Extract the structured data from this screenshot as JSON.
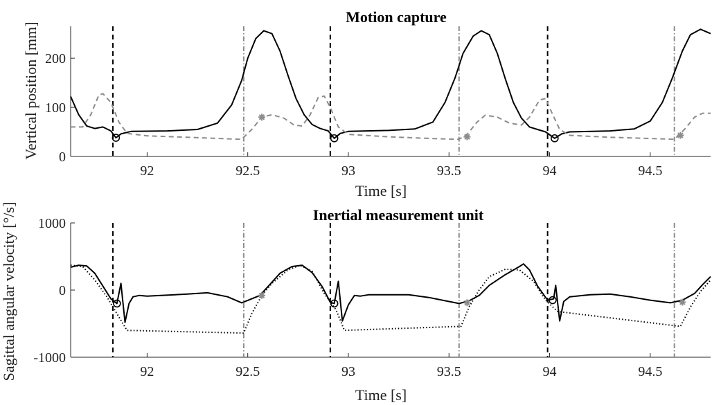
{
  "chart_data": [
    {
      "type": "line",
      "title": "Motion capture",
      "xlabel": "Time [s]",
      "ylabel": "Vertical position [mm]",
      "xlim": [
        91.62,
        94.8
      ],
      "ylim": [
        0,
        265
      ],
      "xticks": [
        92,
        92.5,
        93,
        93.5,
        94,
        94.5
      ],
      "xtick_labels": [
        "92",
        "92.5",
        "93",
        "93.5",
        "94",
        "94.5"
      ],
      "yticks": [
        0,
        100,
        200
      ],
      "ytick_labels": [
        "0",
        "100",
        "200"
      ],
      "grid": false,
      "series": [
        {
          "style": "solid",
          "color": "#000000",
          "points": [
            [
              91.62,
              122
            ],
            [
              91.66,
              85
            ],
            [
              91.7,
              62
            ],
            [
              91.74,
              57
            ],
            [
              91.78,
              60
            ],
            [
              91.82,
              52
            ],
            [
              91.845,
              38
            ],
            [
              91.87,
              46
            ],
            [
              91.92,
              51
            ],
            [
              92.1,
              52
            ],
            [
              92.25,
              55
            ],
            [
              92.35,
              68
            ],
            [
              92.42,
              105
            ],
            [
              92.47,
              155
            ],
            [
              92.5,
              200
            ],
            [
              92.54,
              240
            ],
            [
              92.58,
              256
            ],
            [
              92.62,
              250
            ],
            [
              92.66,
              215
            ],
            [
              92.7,
              165
            ],
            [
              92.74,
              118
            ],
            [
              92.78,
              85
            ],
            [
              92.82,
              65
            ],
            [
              92.86,
              57
            ],
            [
              92.9,
              52
            ],
            [
              92.93,
              37
            ],
            [
              92.96,
              47
            ],
            [
              93.0,
              51
            ],
            [
              93.2,
              53
            ],
            [
              93.33,
              56
            ],
            [
              93.42,
              70
            ],
            [
              93.48,
              110
            ],
            [
              93.53,
              160
            ],
            [
              93.57,
              210
            ],
            [
              93.62,
              245
            ],
            [
              93.66,
              256
            ],
            [
              93.7,
              248
            ],
            [
              93.74,
              210
            ],
            [
              93.78,
              158
            ],
            [
              93.82,
              110
            ],
            [
              93.86,
              78
            ],
            [
              93.9,
              60
            ],
            [
              93.94,
              55
            ],
            [
              93.98,
              50
            ],
            [
              94.025,
              37
            ],
            [
              94.06,
              46
            ],
            [
              94.1,
              50
            ],
            [
              94.3,
              52
            ],
            [
              94.42,
              56
            ],
            [
              94.5,
              72
            ],
            [
              94.56,
              110
            ],
            [
              94.61,
              160
            ],
            [
              94.66,
              215
            ],
            [
              94.7,
              248
            ],
            [
              94.75,
              259
            ],
            [
              94.8,
              250
            ]
          ]
        },
        {
          "style": "dashed",
          "color": "#8c8c8c",
          "points": [
            [
              91.62,
              60
            ],
            [
              91.68,
              60
            ],
            [
              91.72,
              85
            ],
            [
              91.76,
              125
            ],
            [
              91.78,
              128
            ],
            [
              91.82,
              110
            ],
            [
              91.86,
              70
            ],
            [
              91.9,
              47
            ],
            [
              92.0,
              42
            ],
            [
              92.2,
              39
            ],
            [
              92.4,
              36
            ],
            [
              92.47,
              35
            ],
            [
              92.52,
              55
            ],
            [
              92.57,
              80
            ],
            [
              92.62,
              85
            ],
            [
              92.68,
              78
            ],
            [
              92.73,
              64
            ],
            [
              92.77,
              62
            ],
            [
              92.81,
              85
            ],
            [
              92.85,
              120
            ],
            [
              92.88,
              123
            ],
            [
              92.91,
              100
            ],
            [
              92.95,
              60
            ],
            [
              93.0,
              45
            ],
            [
              93.2,
              40
            ],
            [
              93.45,
              36
            ],
            [
              93.55,
              35
            ],
            [
              93.59,
              45
            ],
            [
              93.64,
              70
            ],
            [
              93.68,
              84
            ],
            [
              93.74,
              80
            ],
            [
              93.8,
              68
            ],
            [
              93.86,
              64
            ],
            [
              93.9,
              80
            ],
            [
              93.95,
              115
            ],
            [
              93.98,
              118
            ],
            [
              94.01,
              90
            ],
            [
              94.05,
              55
            ],
            [
              94.1,
              43
            ],
            [
              94.3,
              39
            ],
            [
              94.55,
              36
            ],
            [
              94.62,
              35
            ],
            [
              94.67,
              55
            ],
            [
              94.72,
              80
            ],
            [
              94.76,
              88
            ],
            [
              94.8,
              88
            ]
          ]
        }
      ],
      "markers": [
        {
          "shape": "circle",
          "color": "#000000",
          "points": [
            [
              91.845,
              38
            ],
            [
              92.93,
              37
            ],
            [
              94.025,
              37
            ]
          ]
        },
        {
          "shape": "asterisk",
          "color": "#8c8c8c",
          "points": [
            [
              92.57,
              80
            ],
            [
              93.59,
              40
            ],
            [
              94.65,
              43
            ]
          ]
        }
      ],
      "vlines": [
        {
          "style": "dashed",
          "color": "#000000",
          "x": [
            91.83,
            92.91,
            93.99
          ]
        },
        {
          "style": "dashdot",
          "color": "#8c8c8c",
          "x": [
            92.48,
            93.55,
            94.62
          ]
        }
      ]
    },
    {
      "type": "line",
      "title": "Inertial measurement unit",
      "xlabel": "Time [s]",
      "ylabel": "Sagittal angular velocity [°/s]",
      "xlim": [
        91.62,
        94.8
      ],
      "ylim": [
        -1000,
        1000
      ],
      "xticks": [
        92,
        92.5,
        93,
        93.5,
        94,
        94.5
      ],
      "xtick_labels": [
        "92",
        "92.5",
        "93",
        "93.5",
        "94",
        "94.5"
      ],
      "yticks": [
        -1000,
        0,
        1000
      ],
      "ytick_labels": [
        "-1000",
        "0",
        "1000"
      ],
      "grid": false,
      "series": [
        {
          "style": "solid",
          "color": "#000000",
          "points": [
            [
              91.62,
              340
            ],
            [
              91.66,
              370
            ],
            [
              91.7,
              360
            ],
            [
              91.74,
              250
            ],
            [
              91.78,
              60
            ],
            [
              91.82,
              -130
            ],
            [
              91.85,
              -200
            ],
            [
              91.87,
              100
            ],
            [
              91.89,
              -480
            ],
            [
              91.91,
              -200
            ],
            [
              91.93,
              -100
            ],
            [
              91.96,
              -80
            ],
            [
              92.0,
              -90
            ],
            [
              92.2,
              -60
            ],
            [
              92.3,
              -40
            ],
            [
              92.4,
              -100
            ],
            [
              92.47,
              -190
            ],
            [
              92.52,
              -130
            ],
            [
              92.56,
              -80
            ],
            [
              92.6,
              50
            ],
            [
              92.66,
              250
            ],
            [
              92.72,
              350
            ],
            [
              92.77,
              370
            ],
            [
              92.82,
              260
            ],
            [
              92.87,
              50
            ],
            [
              92.91,
              -180
            ],
            [
              92.93,
              -200
            ],
            [
              92.95,
              130
            ],
            [
              92.97,
              -460
            ],
            [
              93.0,
              -220
            ],
            [
              93.03,
              -80
            ],
            [
              93.06,
              -90
            ],
            [
              93.1,
              -70
            ],
            [
              93.3,
              -70
            ],
            [
              93.4,
              -110
            ],
            [
              93.5,
              -170
            ],
            [
              93.55,
              -200
            ],
            [
              93.6,
              -160
            ],
            [
              93.65,
              -80
            ],
            [
              93.7,
              70
            ],
            [
              93.78,
              230
            ],
            [
              93.85,
              350
            ],
            [
              93.87,
              390
            ],
            [
              93.9,
              300
            ],
            [
              93.94,
              60
            ],
            [
              93.99,
              -150
            ],
            [
              94.02,
              -130
            ],
            [
              94.03,
              70
            ],
            [
              94.05,
              -460
            ],
            [
              94.07,
              -170
            ],
            [
              94.1,
              -100
            ],
            [
              94.2,
              -70
            ],
            [
              94.3,
              -60
            ],
            [
              94.4,
              -100
            ],
            [
              94.5,
              -150
            ],
            [
              94.6,
              -190
            ],
            [
              94.66,
              -150
            ],
            [
              94.72,
              -50
            ],
            [
              94.76,
              80
            ],
            [
              94.8,
              200
            ]
          ]
        },
        {
          "style": "dotted",
          "color": "#000000",
          "points": [
            [
              91.62,
              370
            ],
            [
              91.68,
              350
            ],
            [
              91.74,
              150
            ],
            [
              91.8,
              -100
            ],
            [
              91.84,
              -300
            ],
            [
              91.88,
              -500
            ],
            [
              91.9,
              -600
            ],
            [
              92.48,
              -640
            ],
            [
              92.52,
              -350
            ],
            [
              92.57,
              -80
            ],
            [
              92.62,
              100
            ],
            [
              92.7,
              300
            ],
            [
              92.76,
              370
            ],
            [
              92.82,
              280
            ],
            [
              92.88,
              -50
            ],
            [
              92.94,
              -300
            ],
            [
              92.98,
              -600
            ],
            [
              93.56,
              -540
            ],
            [
              93.6,
              -250
            ],
            [
              93.65,
              0
            ],
            [
              93.7,
              200
            ],
            [
              93.78,
              310
            ],
            [
              93.85,
              300
            ],
            [
              93.92,
              130
            ],
            [
              93.98,
              -150
            ],
            [
              94.04,
              -320
            ],
            [
              94.65,
              -540
            ],
            [
              94.7,
              -250
            ],
            [
              94.75,
              -20
            ],
            [
              94.8,
              150
            ]
          ]
        }
      ],
      "markers": [
        {
          "shape": "circle",
          "color": "#000000",
          "points": [
            [
              91.85,
              -200
            ],
            [
              92.93,
              -200
            ],
            [
              94.015,
              -150
            ]
          ]
        },
        {
          "shape": "asterisk",
          "color": "#8c8c8c",
          "points": [
            [
              92.57,
              -80
            ],
            [
              93.59,
              -190
            ],
            [
              94.66,
              -180
            ]
          ]
        }
      ],
      "vlines": [
        {
          "style": "dashed",
          "color": "#000000",
          "x": [
            91.83,
            92.91,
            93.99
          ]
        },
        {
          "style": "dashdot",
          "color": "#8c8c8c",
          "x": [
            92.48,
            93.55,
            94.62
          ]
        }
      ]
    }
  ]
}
